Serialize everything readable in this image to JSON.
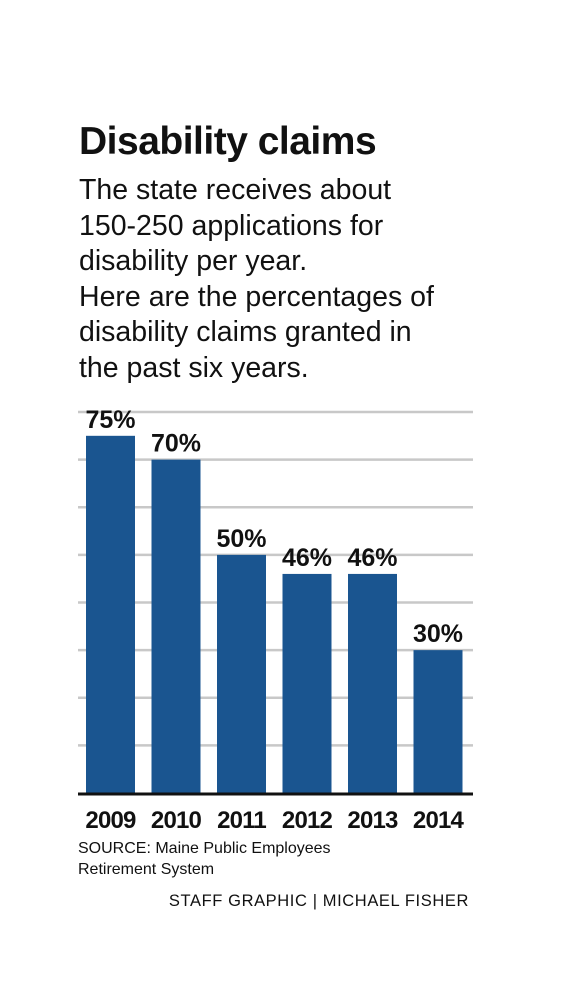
{
  "title": "Disability claims",
  "subtitle_lines": [
    "The state receives about",
    "150-250 applications for",
    "disability per year.",
    "Here are the percentages of",
    "disability claims granted in",
    "the past six years."
  ],
  "source_lines": [
    "SOURCE: Maine Public Employees",
    "Retirement System"
  ],
  "credit": "STAFF GRAPHIC | MICHAEL FISHER",
  "colors": {
    "bar": "#1a5590",
    "grid": "#c8c8c8",
    "axis": "#111111",
    "text": "#111111"
  },
  "chart_data": {
    "type": "bar",
    "categories": [
      "2009",
      "2010",
      "2011",
      "2012",
      "2013",
      "2014"
    ],
    "values": [
      75,
      70,
      50,
      46,
      46,
      30
    ],
    "value_labels": [
      "75%",
      "70%",
      "50%",
      "46%",
      "46%",
      "30%"
    ],
    "ylim": [
      0,
      80
    ],
    "grid": true,
    "ylabel": "",
    "xlabel": ""
  }
}
